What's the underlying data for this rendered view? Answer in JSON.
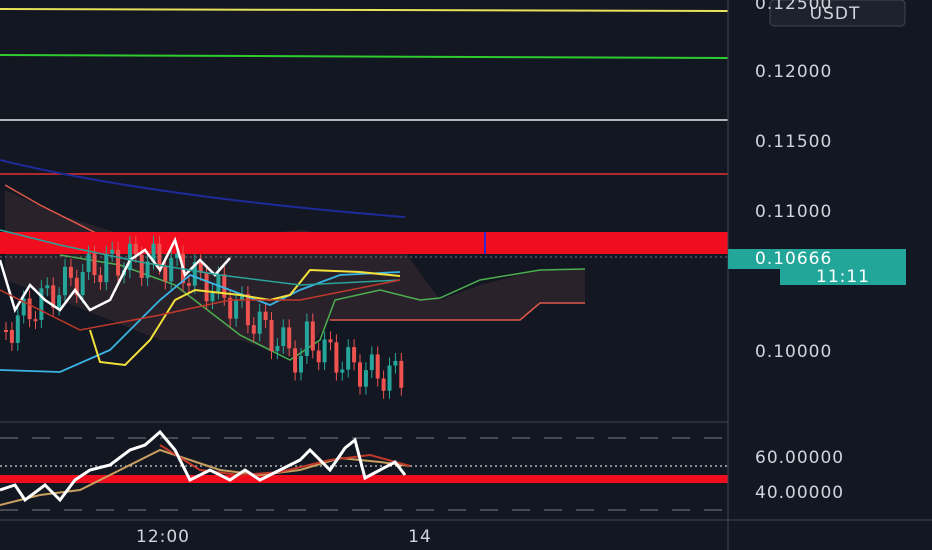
{
  "price_axis": {
    "currency": "USDT",
    "labels": [
      "0.12500",
      "0.12000",
      "0.11500",
      "0.11000",
      "0.10000"
    ]
  },
  "current_price": "0.10666",
  "countdown": "11:11",
  "time_axis": {
    "labels": [
      "12:00",
      "14"
    ]
  },
  "rsi_axis": {
    "labels": [
      "60.00000",
      "40.00000"
    ]
  }
}
